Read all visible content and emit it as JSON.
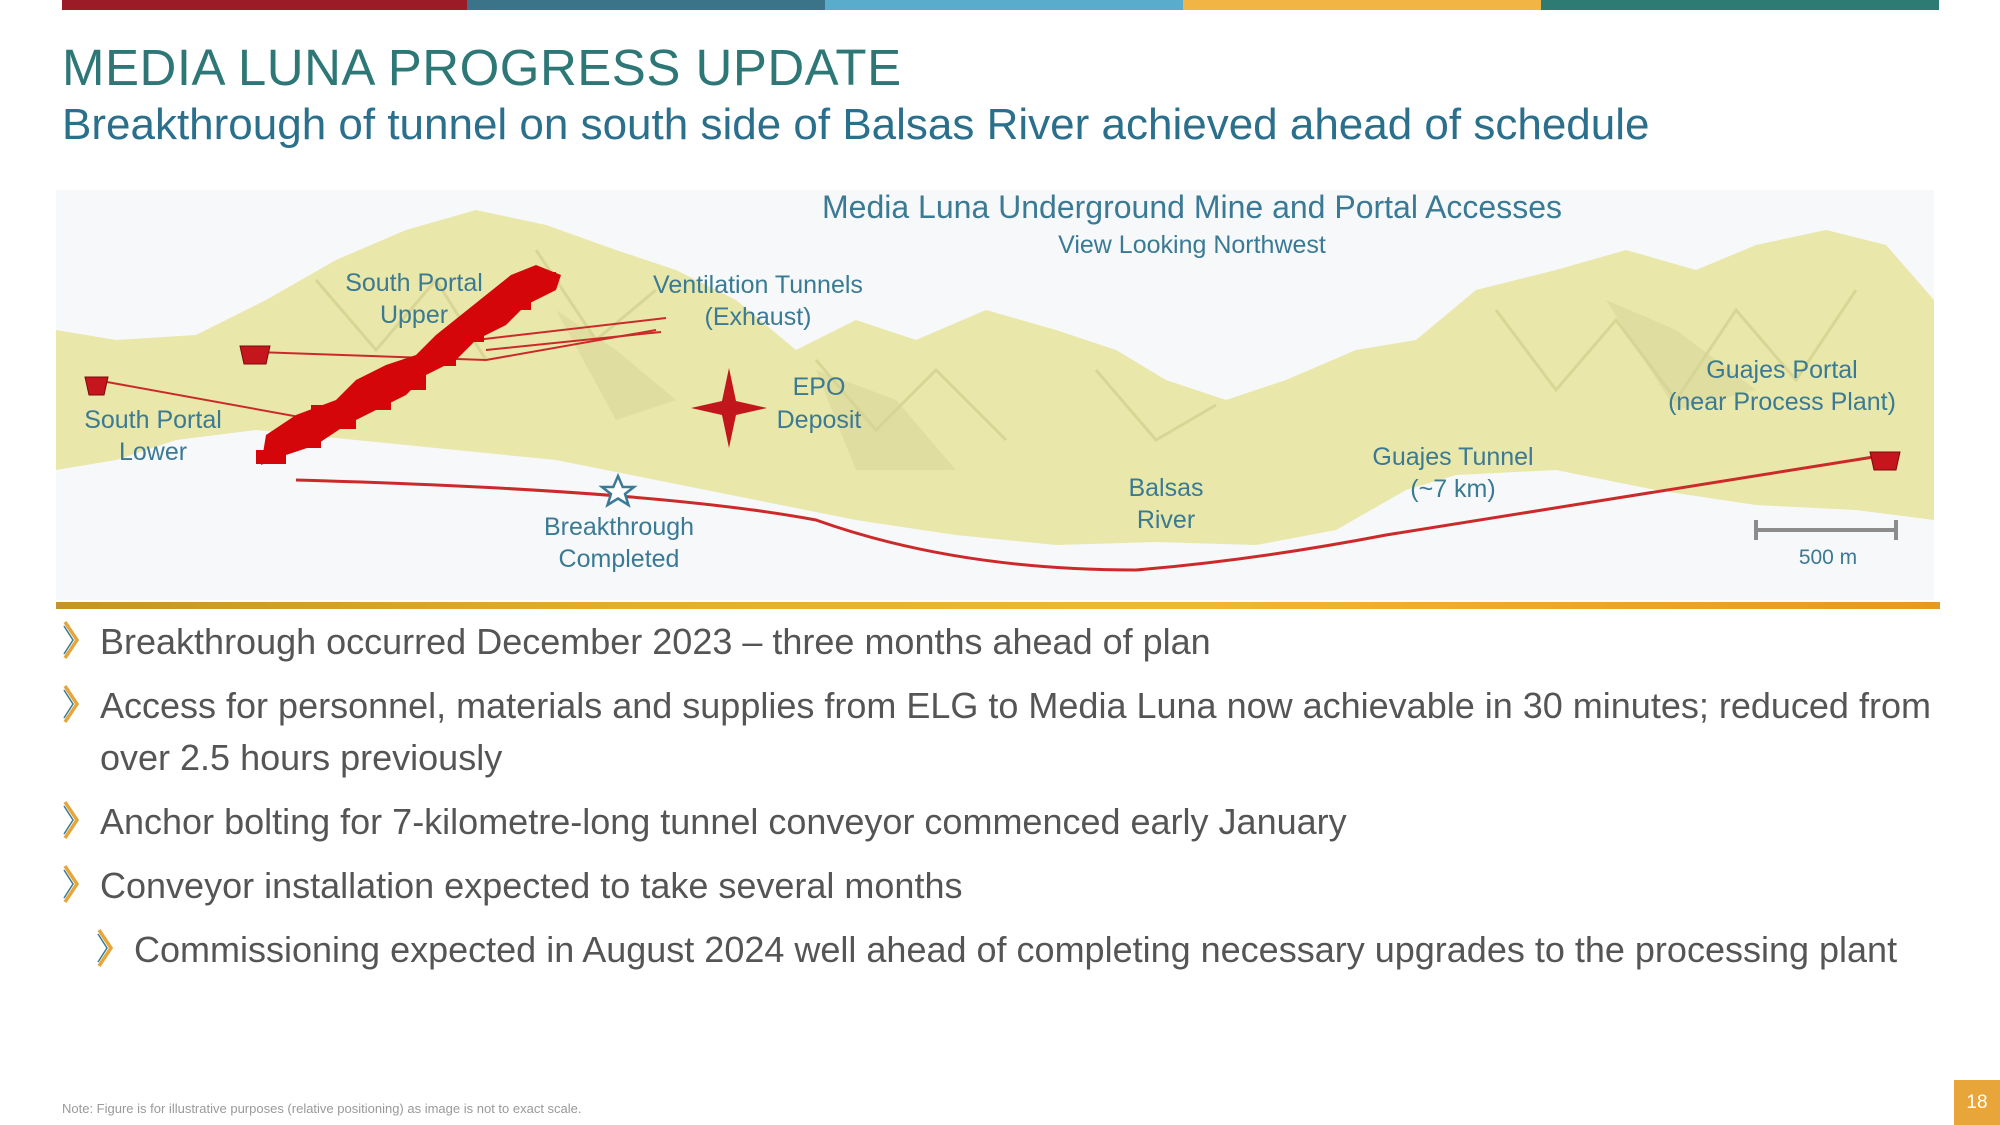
{
  "colors": {
    "band": [
      "#9b1b26",
      "#3b7488",
      "#5aaccd",
      "#f1b545",
      "#2d7b72"
    ],
    "title": "#2e7777",
    "subtitle": "#2a6f8c",
    "figure_label": "#3a7a94",
    "mine_workings": "#d5060a",
    "terrain": "#e8e6a4",
    "accent": "#e8a63a"
  },
  "slide": {
    "title": "MEDIA LUNA PROGRESS UPDATE",
    "subtitle": "Breakthrough of tunnel on south side of Balsas River achieved ahead of schedule"
  },
  "figure": {
    "title": "Media Luna Underground Mine and Portal Accesses",
    "subtitle": "View Looking Northwest",
    "labels": {
      "south_portal_upper": [
        "South Portal",
        "Upper"
      ],
      "south_portal_lower": [
        "South Portal",
        "Lower"
      ],
      "ventilation_tunnels": [
        "Ventilation Tunnels",
        "(Exhaust)"
      ],
      "epo_deposit": [
        "EPO",
        "Deposit"
      ],
      "breakthrough": [
        "Breakthrough",
        "Completed"
      ],
      "balsas_river": [
        "Balsas",
        "River"
      ],
      "guajes_tunnel": [
        "Guajes Tunnel",
        "(~7 km)"
      ],
      "guajes_portal": [
        "Guajes Portal",
        "(near Process Plant)"
      ]
    },
    "scale_bar": "500 m",
    "icons": {
      "portal": "portal-marker-icon",
      "deposit": "deposit-star-icon",
      "breakthrough": "breakthrough-star-icon"
    }
  },
  "bullets": [
    {
      "text": "Breakthrough occurred December 2023 – three months ahead of plan",
      "level": 1
    },
    {
      "text": "Access for personnel, materials and supplies from ELG to Media Luna now achievable in 30 minutes; reduced from over 2.5 hours previously",
      "level": 1
    },
    {
      "text": "Anchor bolting for 7-kilometre-long tunnel conveyor commenced early January",
      "level": 1
    },
    {
      "text": "Conveyor installation expected to take several months",
      "level": 1
    },
    {
      "text": "Commissioning expected in August 2024 well ahead of completing necessary upgrades to the processing plant",
      "level": 2
    }
  ],
  "footer": {
    "note": "Note: Figure is for illustrative purposes (relative positioning) as image is not to exact scale.",
    "page_number": "18"
  }
}
